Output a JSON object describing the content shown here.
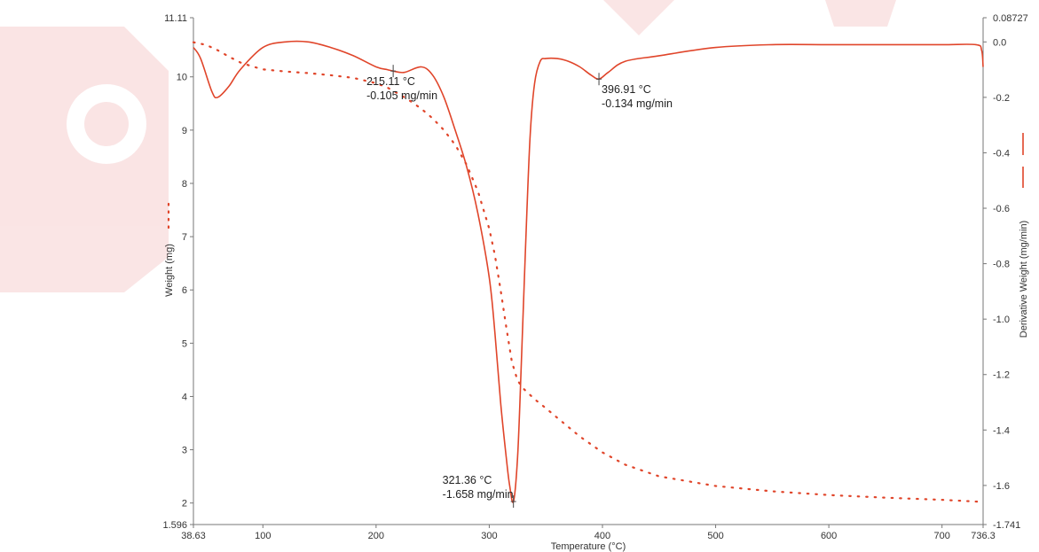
{
  "chart_data": {
    "type": "line",
    "xlabel": "Temperature (°C)",
    "ylabel_left": "Weight (mg)",
    "ylabel_right": "Derivative Weight (mg/min)",
    "xlim": [
      38.63,
      736.3
    ],
    "ylim_left": [
      1.596,
      11.11
    ],
    "ylim_right": [
      -1.741,
      0.08727
    ],
    "x_ticks": [
      "38.63",
      "100",
      "200",
      "300",
      "400",
      "500",
      "600",
      "700",
      "736.3"
    ],
    "y_left_ticks": [
      "11.11",
      "10",
      "9",
      "8",
      "7",
      "6",
      "5",
      "4",
      "3",
      "2",
      "1.596"
    ],
    "y_right_ticks": [
      "0.08727",
      "0.0",
      "-0.2",
      "-0.4",
      "-0.6",
      "-0.8",
      "-1.0",
      "-1.2",
      "-1.4",
      "-1.6",
      "-1.741"
    ],
    "series": [
      {
        "axis": "left",
        "style": "dotted",
        "color": "#e0452a",
        "x": [
          38.63,
          50,
          60,
          70,
          80,
          90,
          100,
          120,
          140,
          160,
          180,
          200,
          210,
          220,
          230,
          240,
          250,
          260,
          270,
          280,
          290,
          300,
          305,
          310,
          315,
          320,
          325,
          330,
          340,
          350,
          360,
          380,
          400,
          420,
          450,
          500,
          550,
          600,
          650,
          700,
          736.3
        ],
        "values": [
          10.65,
          10.6,
          10.5,
          10.38,
          10.27,
          10.2,
          10.14,
          10.1,
          10.07,
          10.03,
          9.98,
          9.88,
          9.8,
          9.68,
          9.55,
          9.4,
          9.22,
          9.0,
          8.72,
          8.35,
          7.85,
          7.15,
          6.65,
          6.0,
          5.3,
          4.65,
          4.3,
          4.15,
          3.95,
          3.78,
          3.6,
          3.25,
          2.95,
          2.72,
          2.5,
          2.32,
          2.22,
          2.15,
          2.1,
          2.06,
          2.02
        ]
      },
      {
        "axis": "right",
        "style": "solid",
        "color": "#e0452a",
        "x": [
          38.63,
          45,
          55,
          60,
          70,
          80,
          100,
          120,
          140,
          160,
          180,
          200,
          210,
          215.11,
          225,
          240,
          250,
          260,
          270,
          280,
          290,
          300,
          305,
          310,
          315,
          318,
          321.36,
          325,
          328,
          332,
          336,
          340,
          345,
          350,
          360,
          370,
          380,
          390,
          396.91,
          405,
          420,
          450,
          500,
          550,
          600,
          650,
          700,
          730,
          735,
          736.3
        ],
        "values": [
          -0.02,
          -0.06,
          -0.18,
          -0.2,
          -0.16,
          -0.1,
          -0.02,
          0.0,
          0.0,
          -0.02,
          -0.05,
          -0.09,
          -0.1,
          -0.105,
          -0.11,
          -0.09,
          -0.12,
          -0.2,
          -0.32,
          -0.45,
          -0.62,
          -0.85,
          -1.05,
          -1.3,
          -1.5,
          -1.6,
          -1.658,
          -1.5,
          -1.2,
          -0.75,
          -0.35,
          -0.15,
          -0.07,
          -0.06,
          -0.06,
          -0.07,
          -0.09,
          -0.12,
          -0.134,
          -0.11,
          -0.07,
          -0.05,
          -0.02,
          -0.01,
          -0.01,
          -0.01,
          -0.01,
          -0.01,
          -0.03,
          -0.09
        ]
      }
    ],
    "annotations": [
      {
        "x": 215.11,
        "y": -0.105,
        "axis": "right",
        "label1": "215.11 °C",
        "label2": "-0.105 mg/min"
      },
      {
        "x": 396.91,
        "y": -0.134,
        "axis": "right",
        "label1": "396.91 °C",
        "label2": "-0.134 mg/min"
      },
      {
        "x": 321.36,
        "y": -1.658,
        "axis": "right",
        "label1": "321.36 °C",
        "label2": "-1.658 mg/min"
      }
    ],
    "legend_markers": [
      {
        "axis": "left",
        "style": "dotted"
      },
      {
        "axis": "right",
        "style": "solid"
      }
    ],
    "grid": false
  },
  "watermark": {
    "description": "faded red gear logo watermark at top-left",
    "color": "#f4c6c6",
    "icon": "gear-wrench-icon"
  }
}
